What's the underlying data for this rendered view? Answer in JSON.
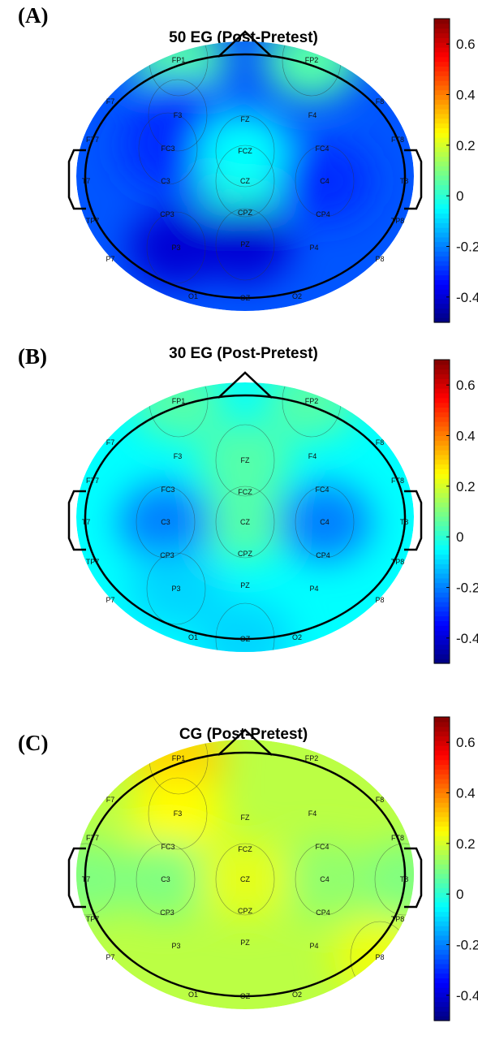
{
  "colormap": "jet",
  "colorbar_ticks": [
    0.6,
    0.4,
    0.2,
    0,
    -0.2,
    -0.4
  ],
  "colorbar_tick_labels": [
    "0.6",
    "0.4",
    "0.2",
    "0",
    "-0.2",
    "-0.4"
  ],
  "colorbar_range": [
    -0.5,
    0.7
  ],
  "electrode_labels": {
    "FP1": "FP1",
    "FP2": "FP2",
    "F7": "F7",
    "F3": "F3",
    "FZ": "FZ",
    "F4": "F4",
    "F8": "F8",
    "FT7": "FT7",
    "FC3": "FC3",
    "FCZ": "FCZ",
    "FC4": "FC4",
    "FT8": "FT8",
    "T7": "T7",
    "C3": "C3",
    "CZ": "CZ",
    "C4": "C4",
    "T8": "T8",
    "TP7": "TP7",
    "CP3": "CP3",
    "CPZ": "CPZ",
    "CP4": "CP4",
    "TP8": "TP8",
    "P7": "P7",
    "P3": "P3",
    "PZ": "PZ",
    "P4": "P4",
    "P8": "P8",
    "O1": "O1",
    "OZ": "OZ",
    "O2": "O2"
  },
  "panels": [
    {
      "letter": "(A)",
      "title": "50 EG (Post-Pretest)",
      "base_value": -0.25,
      "features": [
        {
          "electrode": "FP1",
          "value": 0.05
        },
        {
          "electrode": "FP2",
          "value": 0.05
        },
        {
          "electrode": "F3",
          "value": -0.3
        },
        {
          "electrode": "FC3",
          "value": -0.3
        },
        {
          "electrode": "CZ",
          "value": 0.0
        },
        {
          "electrode": "FCZ",
          "value": -0.05
        },
        {
          "electrode": "C4",
          "value": -0.3
        },
        {
          "electrode": "P3",
          "value": -0.4
        },
        {
          "electrode": "PZ",
          "value": -0.4
        }
      ]
    },
    {
      "letter": "(B)",
      "title": "30 EG (Post-Pretest)",
      "base_value": -0.05,
      "features": [
        {
          "electrode": "FP1",
          "value": 0.05
        },
        {
          "electrode": "FP2",
          "value": 0.05
        },
        {
          "electrode": "FZ",
          "value": 0.05
        },
        {
          "electrode": "CZ",
          "value": 0.05
        },
        {
          "electrode": "C3",
          "value": -0.2
        },
        {
          "electrode": "C4",
          "value": -0.2
        },
        {
          "electrode": "P3",
          "value": -0.1
        },
        {
          "electrode": "OZ",
          "value": -0.1
        }
      ]
    },
    {
      "letter": "(C)",
      "title": "CG (Post-Pretest)",
      "base_value": 0.17,
      "features": [
        {
          "electrode": "FP1",
          "value": 0.3
        },
        {
          "electrode": "F3",
          "value": 0.25
        },
        {
          "electrode": "T7",
          "value": 0.1
        },
        {
          "electrode": "C3",
          "value": 0.1
        },
        {
          "electrode": "T8",
          "value": 0.1
        },
        {
          "electrode": "C4",
          "value": 0.12
        },
        {
          "electrode": "CZ",
          "value": 0.22
        },
        {
          "electrode": "P8",
          "value": 0.23
        }
      ]
    }
  ]
}
